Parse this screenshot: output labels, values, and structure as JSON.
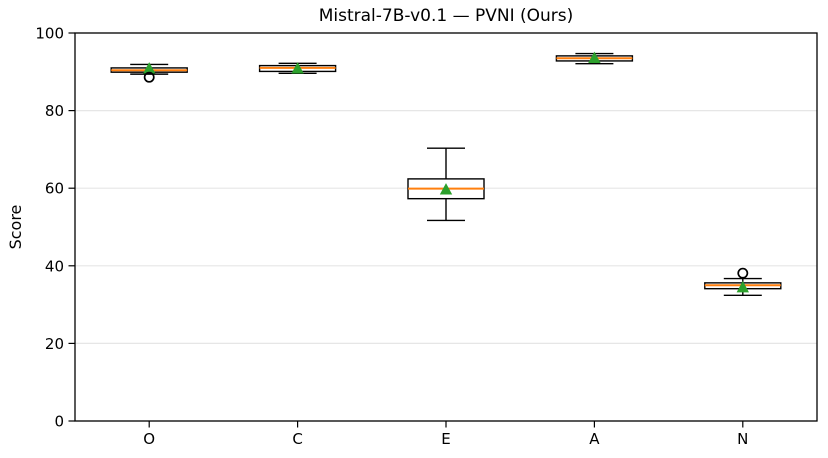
{
  "chart_data": {
    "type": "box",
    "title": "Mistral-7B-v0.1 — PVNI (Ours)",
    "ylabel": "Score",
    "xlabel": "",
    "ylim": [
      0,
      100
    ],
    "yticks": [
      0,
      20,
      40,
      60,
      80,
      100
    ],
    "categories": [
      "O",
      "C",
      "E",
      "A",
      "N"
    ],
    "grid": "horizontal",
    "legend": "none",
    "series": [
      {
        "category": "O",
        "whisker_low": 89.4,
        "q1": 89.9,
        "median": 90.4,
        "q3": 91.0,
        "whisker_high": 91.9,
        "mean": 90.8,
        "outliers": [
          88.6
        ]
      },
      {
        "category": "C",
        "whisker_low": 89.6,
        "q1": 90.1,
        "median": 91.0,
        "q3": 91.6,
        "whisker_high": 92.2,
        "mean": 90.8,
        "outliers": []
      },
      {
        "category": "E",
        "whisker_low": 51.7,
        "q1": 57.3,
        "median": 59.9,
        "q3": 62.4,
        "whisker_high": 70.3,
        "mean": 59.6,
        "outliers": []
      },
      {
        "category": "A",
        "whisker_low": 92.1,
        "q1": 92.8,
        "median": 93.5,
        "q3": 94.1,
        "whisker_high": 94.7,
        "mean": 93.5,
        "outliers": []
      },
      {
        "category": "N",
        "whisker_low": 32.4,
        "q1": 34.1,
        "median": 35.0,
        "q3": 35.6,
        "whisker_high": 36.7,
        "mean": 34.4,
        "outliers": [
          38.1
        ]
      }
    ],
    "colors": {
      "median": "#ff7f0e",
      "mean_marker": "#2ca02c",
      "box_edge": "#000000",
      "box_fill": "#ffffff",
      "grid": "#e6e6e6",
      "background": "#ffffff"
    }
  }
}
